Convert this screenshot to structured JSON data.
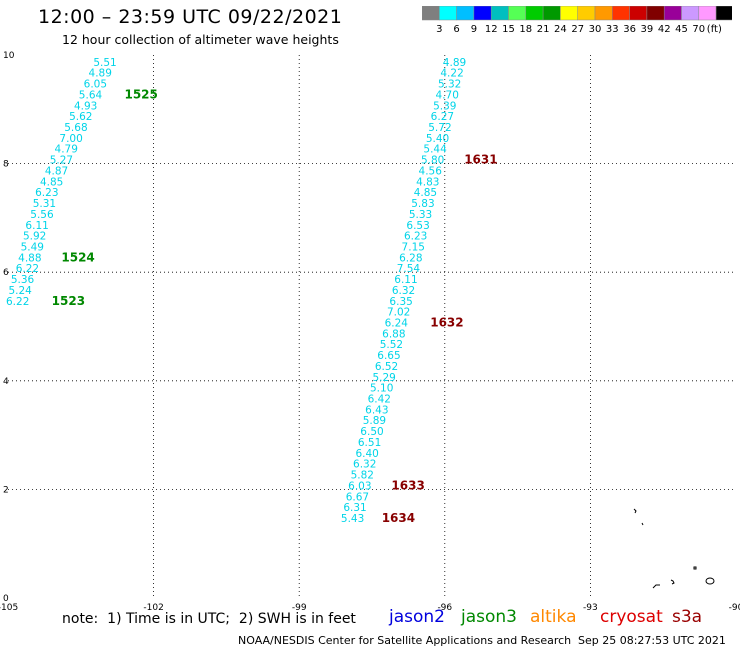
{
  "header": {
    "title": "12:00 – 23:59 UTC 09/22/2021",
    "subtitle": "12 hour collection of altimeter wave heights"
  },
  "colorbar": {
    "colors": [
      "#7f7f7f",
      "#00ffff",
      "#00bfff",
      "#0000ff",
      "#00bfbf",
      "#55ff55",
      "#00cc00",
      "#009900",
      "#ffff00",
      "#ffcc00",
      "#ff9900",
      "#ff3300",
      "#cc0000",
      "#800000",
      "#990099",
      "#cc99ff",
      "#ff99ff",
      "#000000"
    ],
    "labels": [
      "3",
      "6",
      "9",
      "12",
      "15",
      "18",
      "21",
      "24",
      "27",
      "30",
      "33",
      "36",
      "39",
      "42",
      "45",
      "70"
    ],
    "unit": "(ft)"
  },
  "note": "note:  1) Time is in UTC;  2) SWH is in feet",
  "satellites": [
    {
      "name": "jason2",
      "color": "#0000dd"
    },
    {
      "name": "jason3",
      "color": "#008800"
    },
    {
      "name": "altika",
      "color": "#ff8800"
    },
    {
      "name": "cryosat",
      "color": "#dd0000"
    },
    {
      "name": "s3a",
      "color": "#990000"
    }
  ],
  "footer": {
    "source": "NOAA/NESDIS Center for Satellite Applications and Research",
    "generated": "Sep 25 08:27:53 UTC 2021"
  },
  "chart_data": {
    "type": "scatter",
    "xlim": [
      -105,
      -90
    ],
    "ylim": [
      0,
      10
    ],
    "x_ticks": [
      "-105",
      "-102",
      "-99",
      "-96",
      "-93",
      "-90"
    ],
    "x_tick_values": [
      -105,
      -102,
      -99,
      -96,
      -93,
      -90
    ],
    "y_ticks": [
      "0",
      "2",
      "4",
      "6",
      "8",
      "10"
    ],
    "y_tick_values": [
      0,
      2,
      4,
      6,
      8,
      10
    ],
    "grid": true,
    "point_color": "#00d4e8",
    "series": [
      {
        "points": [
          {
            "lon": -103.0,
            "lat": 9.8,
            "swh": "5.51"
          },
          {
            "lon": -103.1,
            "lat": 9.6,
            "swh": "4.89"
          },
          {
            "lon": -103.2,
            "lat": 9.4,
            "swh": "6.05"
          },
          {
            "lon": -103.3,
            "lat": 9.2,
            "swh": "5.64"
          },
          {
            "lon": -103.4,
            "lat": 9.0,
            "swh": "4.93"
          },
          {
            "lon": -103.5,
            "lat": 8.8,
            "swh": "5.62"
          },
          {
            "lon": -103.6,
            "lat": 8.6,
            "swh": "5.68"
          },
          {
            "lon": -103.7,
            "lat": 8.4,
            "swh": "7.00"
          },
          {
            "lon": -103.8,
            "lat": 8.2,
            "swh": "4.79"
          },
          {
            "lon": -103.9,
            "lat": 8.0,
            "swh": "5.27"
          },
          {
            "lon": -104.0,
            "lat": 7.8,
            "swh": "4.87"
          },
          {
            "lon": -104.1,
            "lat": 7.6,
            "swh": "4.85"
          },
          {
            "lon": -104.2,
            "lat": 7.4,
            "swh": "6.23"
          },
          {
            "lon": -104.25,
            "lat": 7.2,
            "swh": "5.31"
          },
          {
            "lon": -104.3,
            "lat": 7.0,
            "swh": "5.56"
          },
          {
            "lon": -104.4,
            "lat": 6.8,
            "swh": "6.11"
          },
          {
            "lon": -104.45,
            "lat": 6.6,
            "swh": "5.92"
          },
          {
            "lon": -104.5,
            "lat": 6.4,
            "swh": "5.49"
          },
          {
            "lon": -104.55,
            "lat": 6.2,
            "swh": "4.88"
          },
          {
            "lon": -104.6,
            "lat": 6.0,
            "swh": "6.22"
          },
          {
            "lon": -104.7,
            "lat": 5.8,
            "swh": "5.36"
          },
          {
            "lon": -104.75,
            "lat": 5.6,
            "swh": "5.24"
          },
          {
            "lon": -104.8,
            "lat": 5.4,
            "swh": "6.22"
          }
        ],
        "pass_labels": [
          {
            "text": "1525",
            "lon": -102.6,
            "lat": 9.2,
            "color": "#008800"
          },
          {
            "text": "1524",
            "lon": -103.9,
            "lat": 6.2,
            "color": "#008800"
          },
          {
            "text": "1523",
            "lon": -104.1,
            "lat": 5.4,
            "color": "#008800"
          }
        ]
      },
      {
        "points": [
          {
            "lon": -95.8,
            "lat": 9.8,
            "swh": "4.89"
          },
          {
            "lon": -95.85,
            "lat": 9.6,
            "swh": "4.22"
          },
          {
            "lon": -95.9,
            "lat": 9.4,
            "swh": "5.32"
          },
          {
            "lon": -95.95,
            "lat": 9.2,
            "swh": "4.70"
          },
          {
            "lon": -96.0,
            "lat": 9.0,
            "swh": "5.39"
          },
          {
            "lon": -96.05,
            "lat": 8.8,
            "swh": "6.27"
          },
          {
            "lon": -96.1,
            "lat": 8.6,
            "swh": "5.72"
          },
          {
            "lon": -96.15,
            "lat": 8.4,
            "swh": "5.40"
          },
          {
            "lon": -96.2,
            "lat": 8.2,
            "swh": "5.44"
          },
          {
            "lon": -96.25,
            "lat": 8.0,
            "swh": "5.80"
          },
          {
            "lon": -96.3,
            "lat": 7.8,
            "swh": "4.56"
          },
          {
            "lon": -96.35,
            "lat": 7.6,
            "swh": "4.83"
          },
          {
            "lon": -96.4,
            "lat": 7.4,
            "swh": "4.85"
          },
          {
            "lon": -96.45,
            "lat": 7.2,
            "swh": "5.83"
          },
          {
            "lon": -96.5,
            "lat": 7.0,
            "swh": "5.33"
          },
          {
            "lon": -96.55,
            "lat": 6.8,
            "swh": "6.53"
          },
          {
            "lon": -96.6,
            "lat": 6.6,
            "swh": "6.23"
          },
          {
            "lon": -96.65,
            "lat": 6.4,
            "swh": "7.15"
          },
          {
            "lon": -96.7,
            "lat": 6.2,
            "swh": "6.28"
          },
          {
            "lon": -96.75,
            "lat": 6.0,
            "swh": "7.54"
          },
          {
            "lon": -96.8,
            "lat": 5.8,
            "swh": "6.11"
          },
          {
            "lon": -96.85,
            "lat": 5.6,
            "swh": "6.32"
          },
          {
            "lon": -96.9,
            "lat": 5.4,
            "swh": "6.35"
          },
          {
            "lon": -96.95,
            "lat": 5.2,
            "swh": "7.02"
          },
          {
            "lon": -97.0,
            "lat": 5.0,
            "swh": "6.24"
          },
          {
            "lon": -97.05,
            "lat": 4.8,
            "swh": "6.88"
          },
          {
            "lon": -97.1,
            "lat": 4.6,
            "swh": "5.52"
          },
          {
            "lon": -97.15,
            "lat": 4.4,
            "swh": "6.65"
          },
          {
            "lon": -97.2,
            "lat": 4.2,
            "swh": "6.52"
          },
          {
            "lon": -97.25,
            "lat": 4.0,
            "swh": "5.29"
          },
          {
            "lon": -97.3,
            "lat": 3.8,
            "swh": "5.10"
          },
          {
            "lon": -97.35,
            "lat": 3.6,
            "swh": "6.42"
          },
          {
            "lon": -97.4,
            "lat": 3.4,
            "swh": "6.43"
          },
          {
            "lon": -97.45,
            "lat": 3.2,
            "swh": "5.89"
          },
          {
            "lon": -97.5,
            "lat": 3.0,
            "swh": "6.50"
          },
          {
            "lon": -97.55,
            "lat": 2.8,
            "swh": "6.51"
          },
          {
            "lon": -97.6,
            "lat": 2.6,
            "swh": "6.40"
          },
          {
            "lon": -97.65,
            "lat": 2.4,
            "swh": "6.32"
          },
          {
            "lon": -97.7,
            "lat": 2.2,
            "swh": "5.82"
          },
          {
            "lon": -97.75,
            "lat": 2.0,
            "swh": "6.03"
          },
          {
            "lon": -97.8,
            "lat": 1.8,
            "swh": "6.67"
          },
          {
            "lon": -97.85,
            "lat": 1.6,
            "swh": "6.31"
          },
          {
            "lon": -97.9,
            "lat": 1.4,
            "swh": "5.43"
          }
        ],
        "pass_labels": [
          {
            "text": "1631",
            "lon": -95.6,
            "lat": 8.0,
            "color": "#880000"
          },
          {
            "text": "1632",
            "lon": -96.3,
            "lat": 5.0,
            "color": "#880000"
          },
          {
            "text": "1633",
            "lon": -97.1,
            "lat": 2.0,
            "color": "#880000"
          },
          {
            "text": "1634",
            "lon": -97.3,
            "lat": 1.4,
            "color": "#880000"
          }
        ]
      }
    ]
  }
}
